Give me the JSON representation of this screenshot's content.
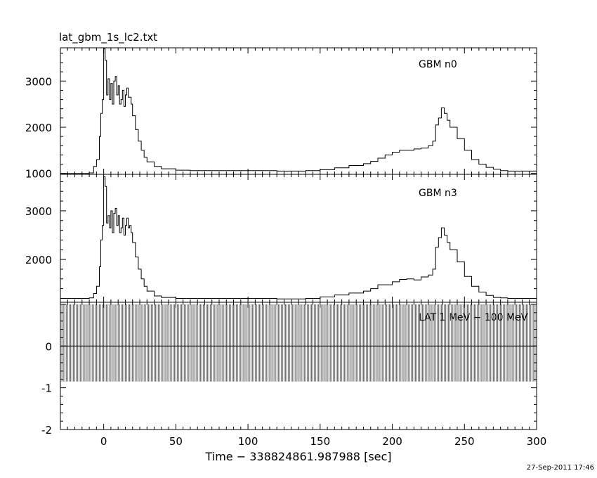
{
  "header": {
    "filename": "lat_gbm_1s_lc2.txt"
  },
  "footer": {
    "timestamp": "27-Sep-2011 17:46"
  },
  "chart_data": {
    "type": "line",
    "xlabel": "Time − 338824861.987988 [sec]",
    "xlim": [
      -30,
      300
    ],
    "xticks": [
      0,
      50,
      100,
      150,
      200,
      250,
      300
    ],
    "panels": [
      {
        "label": "GBM n0",
        "ylim": [
          980,
          3720
        ],
        "yticks": [
          1000,
          2000,
          3000
        ],
        "series": [
          {
            "x": [
              -30,
              -10,
              -7,
              -5,
              -3,
              -2,
              -1,
              0,
              1,
              2,
              3,
              4,
              5,
              6,
              7,
              8,
              9,
              10,
              11,
              12,
              13,
              14,
              15,
              16,
              17,
              18,
              19,
              20,
              22,
              24,
              26,
              28,
              30,
              35,
              40,
              50,
              60,
              80,
              100,
              120,
              140,
              150,
              160,
              170,
              180,
              185,
              190,
              195,
              200,
              205,
              210,
              215,
              220,
              225,
              228,
              230,
              232,
              234,
              236,
              238,
              240,
              245,
              250,
              255,
              260,
              265,
              270,
              275,
              280,
              300
            ],
            "y": [
              1000,
              1010,
              1150,
              1300,
              1800,
              2300,
              2600,
              3700,
              3450,
              2700,
              3050,
              2600,
              2950,
              2500,
              3000,
              3100,
              2700,
              2900,
              2500,
              2600,
              2800,
              2450,
              2700,
              2850,
              2650,
              2650,
              2500,
              2250,
              1950,
              1700,
              1500,
              1350,
              1250,
              1150,
              1100,
              1070,
              1060,
              1060,
              1060,
              1050,
              1060,
              1080,
              1120,
              1170,
              1210,
              1260,
              1330,
              1400,
              1460,
              1500,
              1500,
              1530,
              1550,
              1600,
              1700,
              2050,
              2200,
              2420,
              2300,
              2150,
              2000,
              1750,
              1500,
              1300,
              1200,
              1130,
              1090,
              1060,
              1050,
              1040
            ]
          }
        ]
      },
      {
        "label": "GBM n3",
        "ylim": [
          1120,
          3750
        ],
        "yticks": [
          2000,
          3000
        ],
        "series": [
          {
            "x": [
              -30,
              -10,
              -7,
              -5,
              -3,
              -2,
              -1,
              0,
              1,
              2,
              3,
              4,
              5,
              6,
              7,
              8,
              9,
              10,
              11,
              12,
              13,
              14,
              15,
              16,
              17,
              18,
              19,
              20,
              22,
              24,
              26,
              28,
              30,
              35,
              40,
              50,
              60,
              80,
              100,
              120,
              140,
              150,
              160,
              170,
              180,
              185,
              190,
              195,
              200,
              205,
              210,
              215,
              220,
              225,
              228,
              230,
              232,
              234,
              236,
              238,
              240,
              245,
              250,
              255,
              260,
              265,
              270,
              275,
              280,
              300
            ],
            "y": [
              1200,
              1210,
              1300,
              1450,
              1850,
              2400,
              2700,
              3700,
              3500,
              2750,
              2900,
              2650,
              3000,
              2550,
              2950,
              3050,
              2700,
              2900,
              2550,
              2650,
              2850,
              2500,
              2700,
              2850,
              2650,
              2700,
              2550,
              2350,
              2050,
              1800,
              1600,
              1450,
              1350,
              1250,
              1220,
              1200,
              1200,
              1200,
              1200,
              1190,
              1200,
              1230,
              1270,
              1310,
              1350,
              1400,
              1480,
              1480,
              1540,
              1590,
              1600,
              1580,
              1640,
              1680,
              1800,
              2250,
              2450,
              2650,
              2500,
              2350,
              2200,
              1950,
              1650,
              1450,
              1330,
              1260,
              1220,
              1210,
              1200,
              1190
            ]
          }
        ]
      },
      {
        "label": "LAT 1 MeV − 100 MeV",
        "ylim": [
          -2,
          1.05
        ],
        "yticks": [
          -2,
          -1,
          0
        ],
        "series": [
          {
            "type": "dense-errorbars",
            "x_range": [
              -30,
              300
            ],
            "x_step": 1,
            "y": 0,
            "err_up": 1.0,
            "err_down": -0.85
          }
        ]
      }
    ]
  }
}
